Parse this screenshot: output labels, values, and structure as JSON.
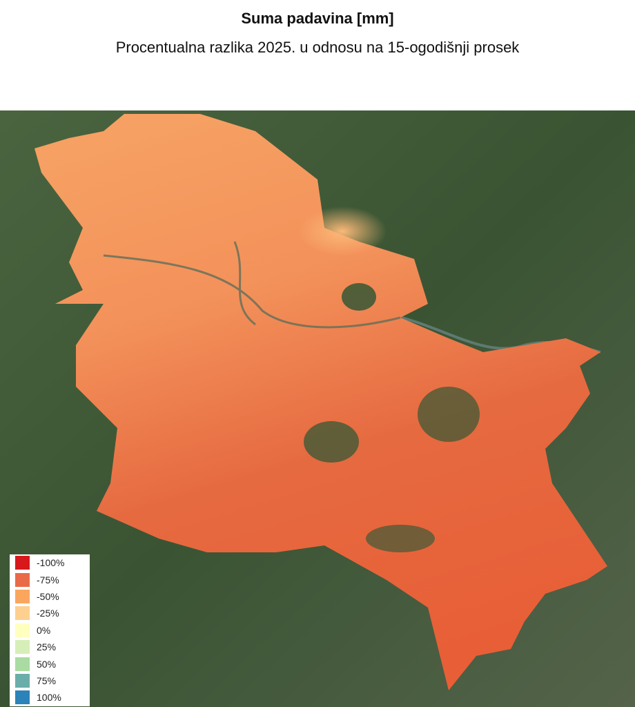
{
  "title": "Suma padavina [mm]",
  "subtitle": "Procentualna razlika 2025. u odnosu na 15-ogodišnji prosek",
  "legend": [
    {
      "label": "-100%",
      "color": "#d7191c"
    },
    {
      "label": "-75%",
      "color": "#ea6a47"
    },
    {
      "label": "-50%",
      "color": "#fba65f"
    },
    {
      "label": "-25%",
      "color": "#fed08f"
    },
    {
      "label": "0%",
      "color": "#ffffc0"
    },
    {
      "label": "25%",
      "color": "#d6efb8"
    },
    {
      "label": "50%",
      "color": "#a9dba2"
    },
    {
      "label": "75%",
      "color": "#6aaeab"
    },
    {
      "label": "100%",
      "color": "#2b83ba"
    }
  ],
  "colors": {
    "background_satellite": "#3f5a36",
    "region_fill_north": "#f7a064",
    "region_fill_south": "#e8603a"
  }
}
